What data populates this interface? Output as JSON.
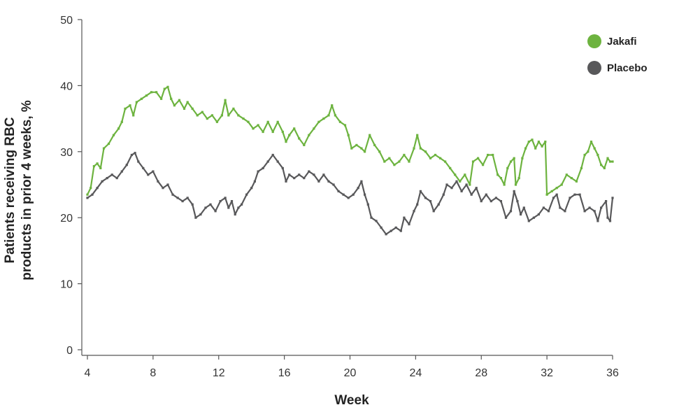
{
  "chart_data": {
    "type": "line",
    "xlabel": "Week",
    "ylabel_lines": [
      "Patients receiving RBC",
      "products in prior 4 weeks, %"
    ],
    "xlim": [
      4,
      36
    ],
    "ylim": [
      0,
      50
    ],
    "x_ticks": [
      4,
      8,
      12,
      16,
      20,
      24,
      28,
      32,
      36
    ],
    "y_ticks": [
      0,
      10,
      20,
      30,
      40,
      50
    ],
    "grid": false,
    "legend_position": "top-right",
    "series": [
      {
        "name": "Jakafi",
        "color": "#6db33f",
        "points": [
          [
            4.0,
            23.5
          ],
          [
            4.2,
            24.5
          ],
          [
            4.4,
            27.8
          ],
          [
            4.6,
            28.2
          ],
          [
            4.8,
            27.5
          ],
          [
            5.0,
            30.5
          ],
          [
            5.3,
            31.2
          ],
          [
            5.6,
            32.5
          ],
          [
            5.9,
            33.5
          ],
          [
            6.1,
            34.5
          ],
          [
            6.3,
            36.5
          ],
          [
            6.6,
            37.0
          ],
          [
            6.8,
            35.5
          ],
          [
            7.0,
            37.5
          ],
          [
            7.3,
            38.0
          ],
          [
            7.6,
            38.5
          ],
          [
            7.9,
            39.0
          ],
          [
            8.2,
            39.0
          ],
          [
            8.5,
            38.0
          ],
          [
            8.7,
            39.5
          ],
          [
            8.9,
            39.8
          ],
          [
            9.1,
            38.0
          ],
          [
            9.3,
            37.0
          ],
          [
            9.6,
            37.8
          ],
          [
            9.9,
            36.5
          ],
          [
            10.1,
            37.5
          ],
          [
            10.4,
            36.5
          ],
          [
            10.7,
            35.5
          ],
          [
            11.0,
            36.0
          ],
          [
            11.3,
            35.0
          ],
          [
            11.6,
            35.5
          ],
          [
            11.9,
            34.5
          ],
          [
            12.2,
            35.5
          ],
          [
            12.4,
            37.8
          ],
          [
            12.6,
            35.5
          ],
          [
            12.9,
            36.5
          ],
          [
            13.2,
            35.5
          ],
          [
            13.5,
            35.0
          ],
          [
            13.8,
            34.5
          ],
          [
            14.1,
            33.5
          ],
          [
            14.4,
            34.0
          ],
          [
            14.7,
            33.0
          ],
          [
            15.0,
            34.5
          ],
          [
            15.3,
            33.0
          ],
          [
            15.6,
            34.5
          ],
          [
            15.9,
            33.0
          ],
          [
            16.1,
            31.5
          ],
          [
            16.3,
            32.5
          ],
          [
            16.6,
            33.5
          ],
          [
            16.9,
            32.0
          ],
          [
            17.2,
            31.0
          ],
          [
            17.5,
            32.5
          ],
          [
            17.8,
            33.5
          ],
          [
            18.1,
            34.5
          ],
          [
            18.4,
            35.0
          ],
          [
            18.7,
            35.5
          ],
          [
            18.9,
            37.0
          ],
          [
            19.1,
            35.5
          ],
          [
            19.4,
            34.5
          ],
          [
            19.7,
            34.0
          ],
          [
            19.9,
            32.5
          ],
          [
            20.1,
            30.5
          ],
          [
            20.4,
            31.0
          ],
          [
            20.7,
            30.5
          ],
          [
            20.9,
            30.0
          ],
          [
            21.2,
            32.5
          ],
          [
            21.5,
            31.0
          ],
          [
            21.8,
            30.0
          ],
          [
            22.1,
            28.5
          ],
          [
            22.4,
            29.0
          ],
          [
            22.7,
            28.0
          ],
          [
            23.0,
            28.5
          ],
          [
            23.3,
            29.5
          ],
          [
            23.6,
            28.5
          ],
          [
            23.9,
            30.5
          ],
          [
            24.1,
            32.5
          ],
          [
            24.3,
            30.5
          ],
          [
            24.6,
            30.0
          ],
          [
            24.9,
            29.0
          ],
          [
            25.2,
            29.5
          ],
          [
            25.5,
            29.0
          ],
          [
            25.8,
            28.5
          ],
          [
            26.1,
            27.5
          ],
          [
            26.4,
            26.5
          ],
          [
            26.7,
            25.5
          ],
          [
            27.0,
            26.5
          ],
          [
            27.3,
            25.0
          ],
          [
            27.5,
            28.5
          ],
          [
            27.8,
            29.0
          ],
          [
            28.1,
            28.0
          ],
          [
            28.4,
            29.5
          ],
          [
            28.7,
            29.5
          ],
          [
            29.0,
            26.5
          ],
          [
            29.2,
            26.0
          ],
          [
            29.4,
            25.0
          ],
          [
            29.6,
            27.5
          ],
          [
            29.8,
            28.5
          ],
          [
            30.0,
            29.0
          ],
          [
            30.1,
            25.0
          ],
          [
            30.3,
            26.0
          ],
          [
            30.5,
            29.0
          ],
          [
            30.7,
            30.5
          ],
          [
            30.9,
            31.5
          ],
          [
            31.1,
            31.8
          ],
          [
            31.3,
            30.5
          ],
          [
            31.5,
            31.5
          ],
          [
            31.7,
            30.8
          ],
          [
            31.9,
            31.5
          ],
          [
            32.0,
            23.5
          ],
          [
            32.3,
            24.0
          ],
          [
            32.6,
            24.5
          ],
          [
            32.9,
            25.0
          ],
          [
            33.2,
            26.5
          ],
          [
            33.5,
            26.0
          ],
          [
            33.8,
            25.5
          ],
          [
            34.1,
            27.5
          ],
          [
            34.3,
            29.5
          ],
          [
            34.5,
            30.0
          ],
          [
            34.7,
            31.5
          ],
          [
            34.9,
            30.5
          ],
          [
            35.1,
            29.5
          ],
          [
            35.3,
            28.0
          ],
          [
            35.5,
            27.5
          ],
          [
            35.7,
            29.0
          ],
          [
            35.85,
            28.5
          ],
          [
            36.0,
            28.5
          ]
        ]
      },
      {
        "name": "Placebo",
        "color": "#58585a",
        "points": [
          [
            4.0,
            23.0
          ],
          [
            4.3,
            23.5
          ],
          [
            4.6,
            24.5
          ],
          [
            4.9,
            25.5
          ],
          [
            5.2,
            26.0
          ],
          [
            5.5,
            26.5
          ],
          [
            5.8,
            26.0
          ],
          [
            6.1,
            27.0
          ],
          [
            6.4,
            28.0
          ],
          [
            6.7,
            29.5
          ],
          [
            6.9,
            29.8
          ],
          [
            7.1,
            28.5
          ],
          [
            7.4,
            27.5
          ],
          [
            7.7,
            26.5
          ],
          [
            8.0,
            27.0
          ],
          [
            8.3,
            25.5
          ],
          [
            8.6,
            24.5
          ],
          [
            8.9,
            25.0
          ],
          [
            9.2,
            23.5
          ],
          [
            9.5,
            23.0
          ],
          [
            9.8,
            22.5
          ],
          [
            10.1,
            23.0
          ],
          [
            10.4,
            22.0
          ],
          [
            10.6,
            20.0
          ],
          [
            10.9,
            20.5
          ],
          [
            11.2,
            21.5
          ],
          [
            11.5,
            22.0
          ],
          [
            11.8,
            21.0
          ],
          [
            12.1,
            22.5
          ],
          [
            12.4,
            23.0
          ],
          [
            12.6,
            21.5
          ],
          [
            12.8,
            22.5
          ],
          [
            13.0,
            20.5
          ],
          [
            13.2,
            21.5
          ],
          [
            13.4,
            22.0
          ],
          [
            13.7,
            23.5
          ],
          [
            14.0,
            24.5
          ],
          [
            14.2,
            25.5
          ],
          [
            14.4,
            27.0
          ],
          [
            14.7,
            27.5
          ],
          [
            15.0,
            28.5
          ],
          [
            15.3,
            29.5
          ],
          [
            15.6,
            28.5
          ],
          [
            15.9,
            27.5
          ],
          [
            16.1,
            25.5
          ],
          [
            16.3,
            26.5
          ],
          [
            16.6,
            26.0
          ],
          [
            16.9,
            26.5
          ],
          [
            17.2,
            26.0
          ],
          [
            17.5,
            27.0
          ],
          [
            17.8,
            26.5
          ],
          [
            18.1,
            25.5
          ],
          [
            18.4,
            26.5
          ],
          [
            18.7,
            25.5
          ],
          [
            19.0,
            25.0
          ],
          [
            19.3,
            24.0
          ],
          [
            19.6,
            23.5
          ],
          [
            19.9,
            23.0
          ],
          [
            20.2,
            23.5
          ],
          [
            20.5,
            24.5
          ],
          [
            20.7,
            25.5
          ],
          [
            20.9,
            23.5
          ],
          [
            21.1,
            22.0
          ],
          [
            21.3,
            20.0
          ],
          [
            21.6,
            19.5
          ],
          [
            21.9,
            18.5
          ],
          [
            22.2,
            17.5
          ],
          [
            22.5,
            18.0
          ],
          [
            22.8,
            18.5
          ],
          [
            23.1,
            18.0
          ],
          [
            23.3,
            20.0
          ],
          [
            23.6,
            19.0
          ],
          [
            23.9,
            21.0
          ],
          [
            24.1,
            22.0
          ],
          [
            24.3,
            24.0
          ],
          [
            24.6,
            23.0
          ],
          [
            24.9,
            22.5
          ],
          [
            25.1,
            21.0
          ],
          [
            25.4,
            22.0
          ],
          [
            25.7,
            23.5
          ],
          [
            25.9,
            25.0
          ],
          [
            26.2,
            24.5
          ],
          [
            26.5,
            25.5
          ],
          [
            26.8,
            24.0
          ],
          [
            27.1,
            25.0
          ],
          [
            27.4,
            23.5
          ],
          [
            27.7,
            24.5
          ],
          [
            28.0,
            22.5
          ],
          [
            28.3,
            23.5
          ],
          [
            28.6,
            22.5
          ],
          [
            28.9,
            23.0
          ],
          [
            29.2,
            22.5
          ],
          [
            29.5,
            20.0
          ],
          [
            29.8,
            21.0
          ],
          [
            30.0,
            24.0
          ],
          [
            30.2,
            22.5
          ],
          [
            30.4,
            20.5
          ],
          [
            30.6,
            21.5
          ],
          [
            30.9,
            19.5
          ],
          [
            31.2,
            20.0
          ],
          [
            31.5,
            20.5
          ],
          [
            31.8,
            21.5
          ],
          [
            32.1,
            21.0
          ],
          [
            32.4,
            23.0
          ],
          [
            32.6,
            23.5
          ],
          [
            32.8,
            21.5
          ],
          [
            33.1,
            21.0
          ],
          [
            33.4,
            23.0
          ],
          [
            33.7,
            23.5
          ],
          [
            34.0,
            23.5
          ],
          [
            34.3,
            21.0
          ],
          [
            34.6,
            21.5
          ],
          [
            34.9,
            21.0
          ],
          [
            35.1,
            19.5
          ],
          [
            35.3,
            21.5
          ],
          [
            35.6,
            22.5
          ],
          [
            35.7,
            20.0
          ],
          [
            35.85,
            19.5
          ],
          [
            36.0,
            23.0
          ]
        ]
      }
    ]
  }
}
